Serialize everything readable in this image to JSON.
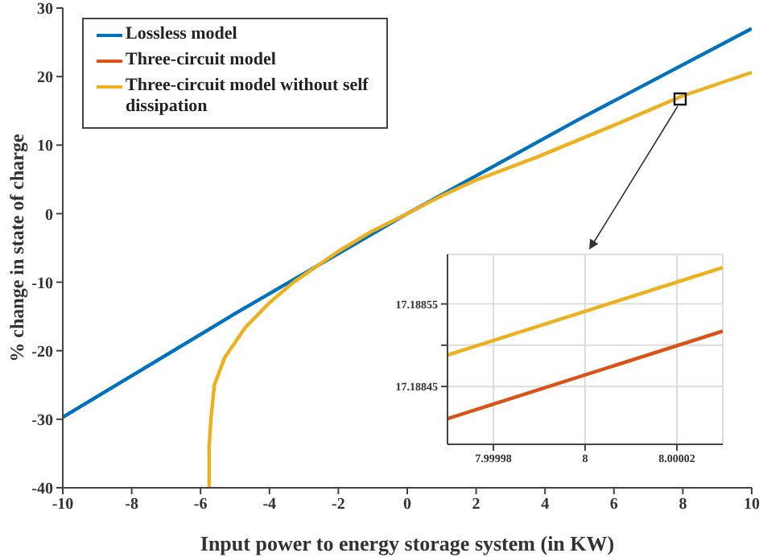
{
  "chart_data": [
    {
      "type": "line",
      "xlabel": "Input power to energy storage system (in KW)",
      "ylabel": "% change in state of charge",
      "xlim": [
        -10,
        10
      ],
      "xticks": [
        -10,
        -8,
        -6,
        -4,
        -2,
        0,
        2,
        4,
        6,
        8,
        10
      ],
      "ylim": [
        -40,
        30
      ],
      "yticks": [
        -40,
        -30,
        -20,
        -10,
        0,
        10,
        20,
        30
      ],
      "legend": "top left",
      "series": [
        {
          "name": "Lossless model",
          "color": "#0072bd",
          "x": [
            -10,
            -5,
            0,
            5,
            10
          ],
          "values": [
            -29.7,
            -14.6,
            0,
            13.8,
            27
          ]
        },
        {
          "name": "Three-circuit model",
          "color": "#d95319"
        },
        {
          "name": "Three-circuit model without self dissipation",
          "color": "#edb120",
          "x": [
            -5.75,
            -5.75,
            -5.7,
            -5.6,
            -5.3,
            -4.7,
            -4,
            -3.3,
            -2,
            -1,
            0,
            1,
            2,
            3.74,
            6,
            8,
            10
          ],
          "values": [
            -40,
            -34,
            -30,
            -25,
            -21,
            -16.6,
            -13,
            -10,
            -5.5,
            -2.5,
            0,
            2.6,
            4.9,
            8.2,
            12.9,
            17.2,
            20.6
          ]
        }
      ]
    },
    {
      "type": "line",
      "xlim": [
        7.99997,
        8.00003
      ],
      "xticks": [
        7.99998,
        8,
        8.00002
      ],
      "ylim": [
        17.18838,
        17.18861
      ],
      "yticks": [
        17.18845,
        {
          "value": 17.1885,
          "label": null
        },
        17.18855
      ],
      "grid": true,
      "series": [
        {
          "color": "#edb120",
          "x": [
            7.99997,
            8.00003
          ],
          "values": [
            17.188488,
            17.188594
          ]
        },
        {
          "color": "#d95319",
          "x": [
            7.99997,
            8.00003
          ],
          "values": [
            17.188411,
            17.188517
          ]
        }
      ]
    }
  ]
}
